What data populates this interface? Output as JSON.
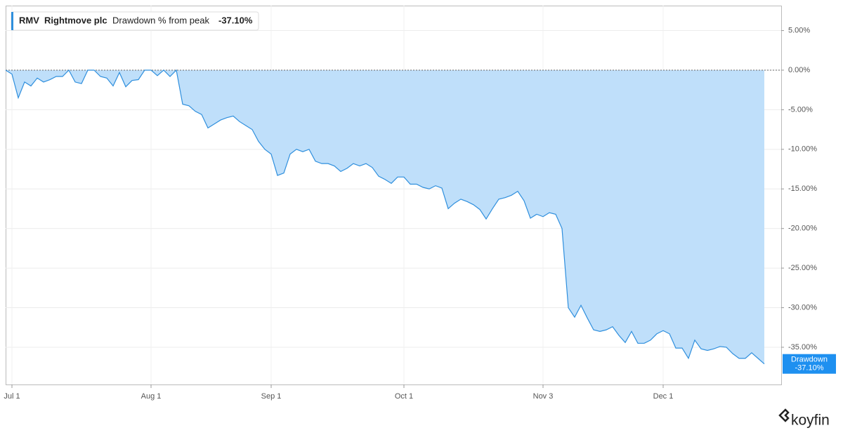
{
  "chart_data": {
    "type": "area",
    "legend": {
      "ticker": "RMV",
      "name": "Rightmove plc",
      "metric": "Drawdown % from peak",
      "value_label": "-37.10%"
    },
    "badge": {
      "name": "Drawdown",
      "value_label": "-37.10%"
    },
    "brand": "koyfin",
    "color": "#2f8fdd",
    "fill": "#bfdffa",
    "categories": [
      null,
      "Jul 1",
      null,
      null,
      null,
      null,
      null,
      null,
      null,
      null,
      null,
      null,
      null,
      null,
      null,
      null,
      null,
      null,
      null,
      null,
      null,
      null,
      null,
      "Aug 1",
      null,
      null,
      null,
      null,
      null,
      null,
      null,
      null,
      null,
      null,
      null,
      null,
      null,
      null,
      null,
      null,
      null,
      null,
      "Sep 1",
      null,
      null,
      null,
      null,
      null,
      null,
      null,
      null,
      null,
      null,
      null,
      null,
      null,
      null,
      null,
      null,
      null,
      null,
      null,
      null,
      "Oct 1",
      null,
      null,
      null,
      null,
      null,
      null,
      null,
      null,
      null,
      null,
      null,
      null,
      null,
      null,
      null,
      null,
      null,
      null,
      null,
      null,
      null,
      "Nov 3",
      null,
      null,
      null,
      null,
      null,
      null,
      null,
      null,
      null,
      null,
      null,
      null,
      null,
      null,
      null,
      null,
      null,
      null,
      "Dec 1",
      null,
      null,
      null,
      null,
      null,
      null,
      null,
      null,
      null,
      null,
      null,
      null,
      null,
      null,
      null,
      null
    ],
    "values": [
      0,
      -0.5,
      -3.5,
      -1.5,
      -2,
      -1,
      -1.5,
      -1.2,
      -0.8,
      -0.8,
      0,
      -1.5,
      -1.7,
      0,
      0,
      -0.8,
      -1,
      -2,
      -0.3,
      -2.1,
      -1.3,
      -1.2,
      0,
      0,
      -0.7,
      0,
      -0.8,
      0,
      -4.3,
      -4.5,
      -5.2,
      -5.6,
      -7.3,
      -6.8,
      -6.3,
      -6,
      -5.8,
      -6.5,
      -7,
      -7.5,
      -9,
      -10,
      -10.6,
      -13.3,
      -13,
      -10.6,
      -10,
      -10.3,
      -10,
      -11.5,
      -11.8,
      -11.8,
      -12.1,
      -12.8,
      -12.4,
      -11.8,
      -12.1,
      -11.8,
      -12.3,
      -13.4,
      -13.8,
      -14.3,
      -13.5,
      -13.5,
      -14.4,
      -14.4,
      -14.8,
      -15,
      -14.6,
      -14.9,
      -17.5,
      -16.8,
      -16.3,
      -16.6,
      -17,
      -17.6,
      -18.8,
      -17.5,
      -16.3,
      -16.1,
      -15.8,
      -15.3,
      -16.5,
      -18.7,
      -18.2,
      -18.5,
      -18,
      -18.2,
      -20,
      -30,
      -31.2,
      -29.7,
      -31.3,
      -32.8,
      -33,
      -32.8,
      -32.4,
      -33.5,
      -34.4,
      -33,
      -34.5,
      -34.5,
      -34.1,
      -33.3,
      -32.9,
      -33.3,
      -35.1,
      -35.1,
      -36.4,
      -34.1,
      -35.2,
      -35.4,
      -35.2,
      -34.9,
      -35,
      -35.8,
      -36.4,
      -36.4,
      -35.7,
      -36.4,
      -37.1
    ],
    "zero_line": 0,
    "ylim": [
      -39.7,
      8.15
    ],
    "yticks": [
      {
        "value": 5,
        "label": "5.00%"
      },
      {
        "value": 0,
        "label": "0.00%"
      },
      {
        "value": -5,
        "label": "-5.00%"
      },
      {
        "value": -10,
        "label": "-10.00%"
      },
      {
        "value": -15,
        "label": "-15.00%"
      },
      {
        "value": -20,
        "label": "-20.00%"
      },
      {
        "value": -25,
        "label": "-25.00%"
      },
      {
        "value": -30,
        "label": "-30.00%"
      },
      {
        "value": -35,
        "label": "-35.00%"
      }
    ],
    "grid": true
  }
}
